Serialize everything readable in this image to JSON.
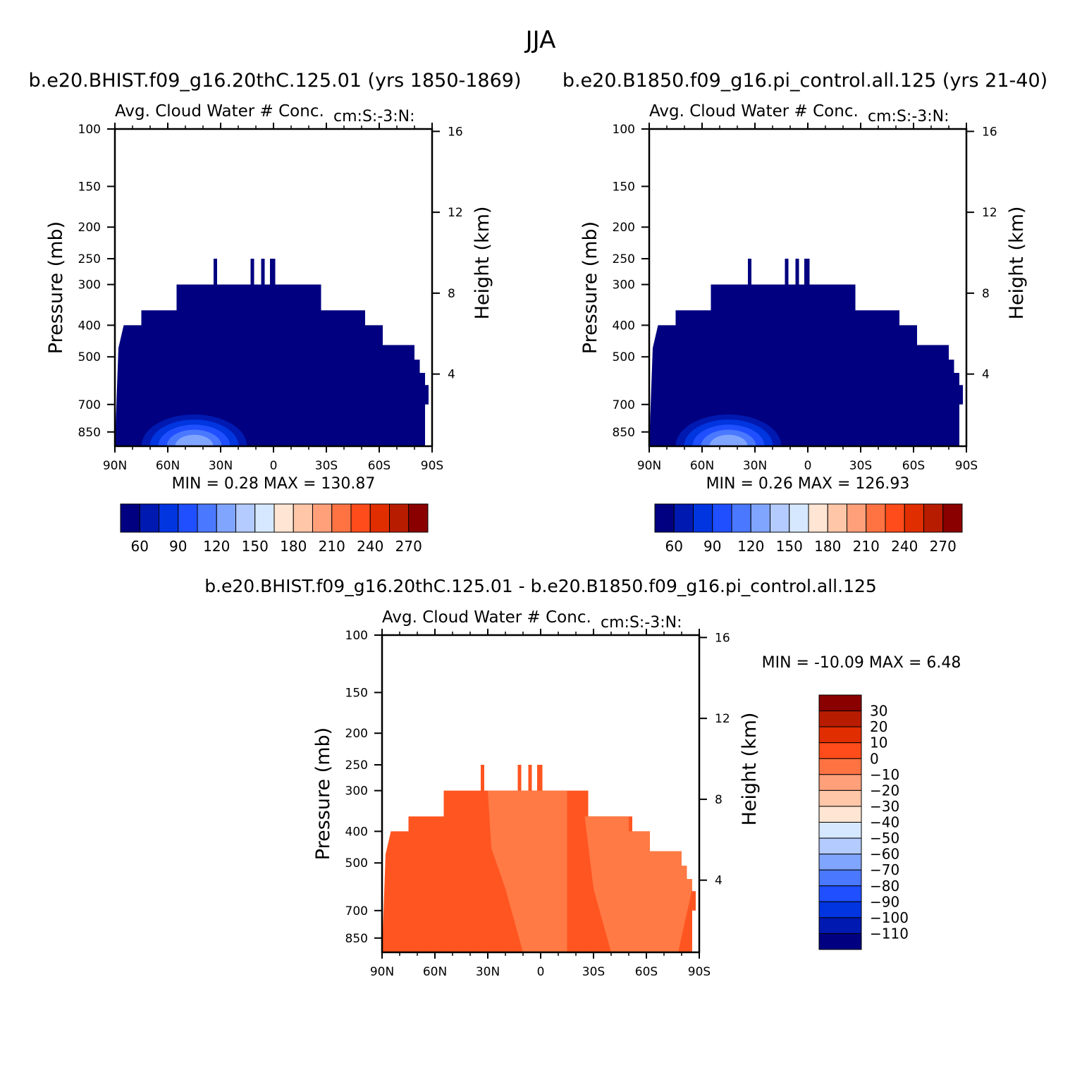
{
  "figure": {
    "season": "JJA",
    "panels": {
      "control": {
        "title": "b.e20.BHIST.f09_g16.20thC.125.01 (yrs 1850-1869)",
        "plot_title": "Avg. Cloud Water # Conc.",
        "plot_units": "cm:S:-3:N:",
        "min_label": "MIN =",
        "min_value": "0.28",
        "max_label": "MAX =",
        "max_value": "130.87"
      },
      "test": {
        "title": "b.e20.B1850.f09_g16.pi_control.all.125 (yrs 21-40)",
        "plot_title": "Avg. Cloud Water # Conc.",
        "plot_units": "cm:S:-3:N:",
        "min_label": "MIN =",
        "min_value": "0.26",
        "max_label": "MAX =",
        "max_value": "126.93"
      },
      "difference": {
        "title": "b.e20.BHIST.f09_g16.20thC.125.01 - b.e20.B1850.f09_g16.pi_control.all.125",
        "plot_title": "Avg. Cloud Water # Conc.",
        "plot_units": "cm:S:-3:N:",
        "min_label": "MIN =",
        "min_value": "-10.09",
        "max_label": "MAX =",
        "max_value": "6.48"
      }
    },
    "axes": {
      "ylabel": "Pressure (mb)",
      "y2label": "Height (km)"
    }
  },
  "chart_data": [
    {
      "type": "heatmap",
      "panel": "control",
      "x_ticks": [
        "90N",
        "60N",
        "30N",
        "0",
        "30S",
        "60S",
        "90S"
      ],
      "x_range": [
        90,
        -90
      ],
      "y_ticks": [
        100,
        150,
        200,
        250,
        300,
        400,
        500,
        700,
        850
      ],
      "y_range": [
        100,
        940
      ],
      "y_scale": "log",
      "y2_ticks": [
        16,
        12,
        8,
        4
      ],
      "colorbar_ticks": [
        60,
        90,
        120,
        150,
        180,
        210,
        240,
        270
      ],
      "colorbar_colors": [
        "#000080",
        "#0019b0",
        "#0035e0",
        "#1f4fff",
        "#4a78ff",
        "#80a5ff",
        "#b3cbff",
        "#d6e8ff",
        "#ffe5d3",
        "#ffc6a8",
        "#ffa07b",
        "#ff7343",
        "#ff4c1a",
        "#e02e00",
        "#b81c00",
        "#8a0000"
      ],
      "value_range": [
        0.28,
        130.87
      ],
      "field_color": "#000080"
    },
    {
      "type": "heatmap",
      "panel": "test",
      "x_ticks": [
        "90N",
        "60N",
        "30N",
        "0",
        "30S",
        "60S",
        "90S"
      ],
      "x_range": [
        90,
        -90
      ],
      "y_ticks": [
        100,
        150,
        200,
        250,
        300,
        400,
        500,
        700,
        850
      ],
      "y_range": [
        100,
        940
      ],
      "y_scale": "log",
      "y2_ticks": [
        16,
        12,
        8,
        4
      ],
      "colorbar_ticks": [
        60,
        90,
        120,
        150,
        180,
        210,
        240,
        270
      ],
      "colorbar_colors": [
        "#000080",
        "#0019b0",
        "#0035e0",
        "#1f4fff",
        "#4a78ff",
        "#80a5ff",
        "#b3cbff",
        "#d6e8ff",
        "#ffe5d3",
        "#ffc6a8",
        "#ffa07b",
        "#ff7343",
        "#ff4c1a",
        "#e02e00",
        "#b81c00",
        "#8a0000"
      ],
      "value_range": [
        0.26,
        126.93
      ],
      "field_color": "#000080"
    },
    {
      "type": "heatmap",
      "panel": "difference",
      "x_ticks": [
        "90N",
        "60N",
        "30N",
        "0",
        "30S",
        "60S",
        "90S"
      ],
      "x_range": [
        90,
        -90
      ],
      "y_ticks": [
        100,
        150,
        200,
        250,
        300,
        400,
        500,
        700,
        850
      ],
      "y_range": [
        100,
        940
      ],
      "y_scale": "log",
      "y2_ticks": [
        16,
        12,
        8,
        4
      ],
      "colorbar_ticks": [
        30,
        20,
        10,
        0,
        -10,
        -20,
        -30,
        -40,
        -50,
        -60,
        -70,
        -80,
        -90,
        -100,
        -110
      ],
      "colorbar_colors": [
        "#8a0000",
        "#b81c00",
        "#e02e00",
        "#ff4c1a",
        "#ff7343",
        "#ffa07b",
        "#ffc6a8",
        "#ffe5d3",
        "#d6e8ff",
        "#b3cbff",
        "#80a5ff",
        "#4a78ff",
        "#1f4fff",
        "#0035e0",
        "#0019b0",
        "#000080"
      ],
      "value_range": [
        -10.09,
        6.48
      ],
      "field_color": "#ff5520",
      "field_color_alt": "#ff7a45"
    }
  ]
}
